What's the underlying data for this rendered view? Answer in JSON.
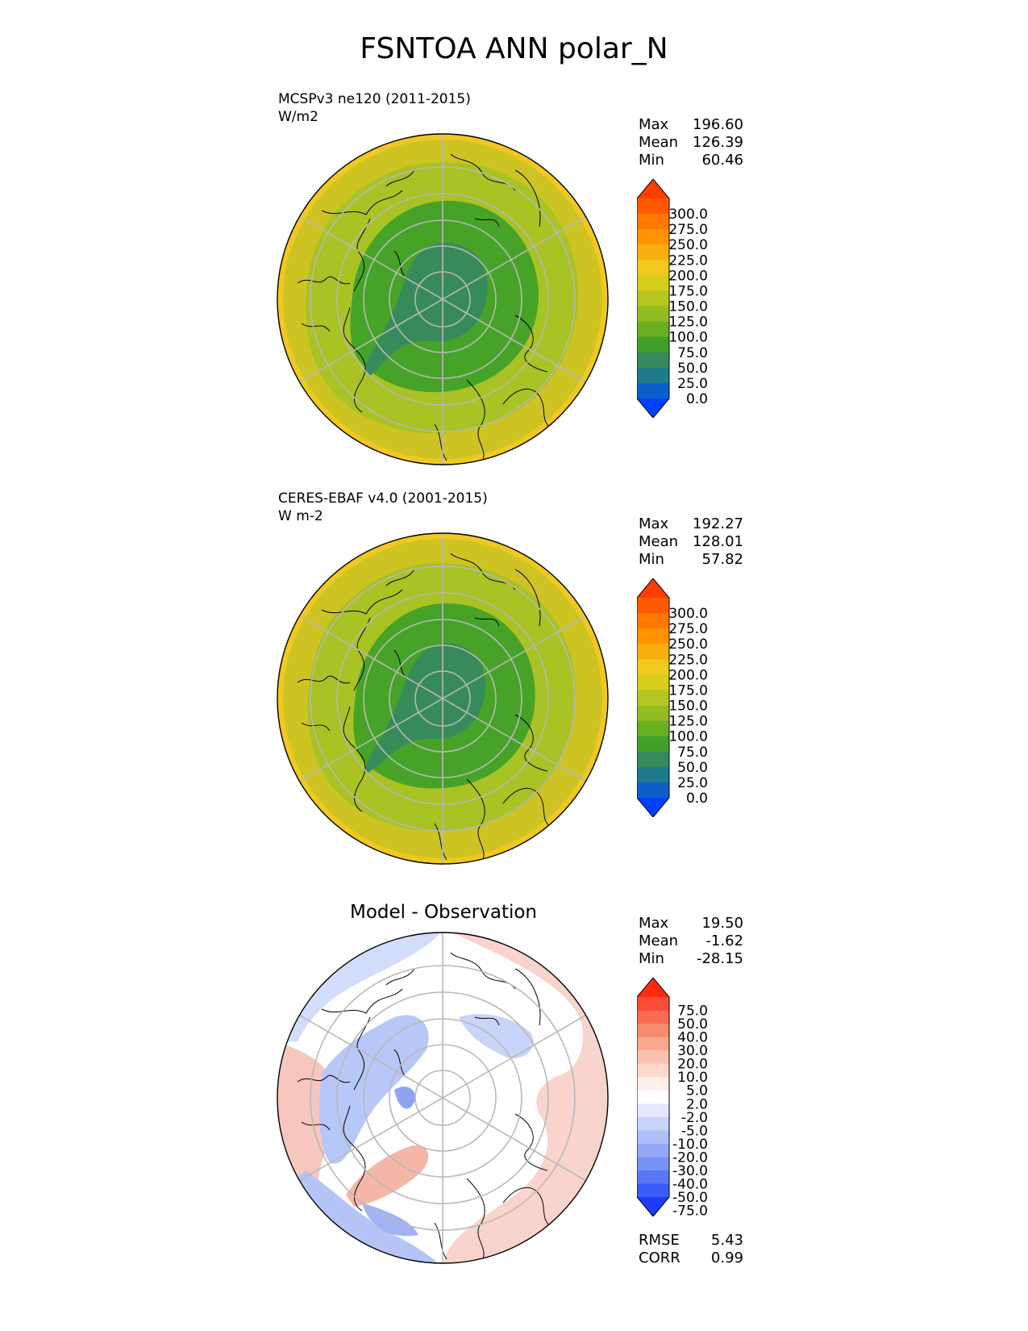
{
  "title": "FSNTOA ANN polar_N",
  "panels": [
    {
      "id": "model",
      "name_line": "MCSPv3 ne120 (2011-2015)",
      "units_line": "W/m2",
      "stats": {
        "max_label": "Max",
        "max": "196.60",
        "mean_label": "Mean",
        "mean": "126.39",
        "min_label": "Min",
        "min": "60.46"
      },
      "colorbar": {
        "labels": [
          "300.0",
          "275.0",
          "250.0",
          "225.0",
          "200.0",
          "175.0",
          "150.0",
          "125.0",
          "100.0",
          "75.0",
          "50.0",
          "25.0",
          "0.0"
        ],
        "colors_top_to_bottom": [
          "#ff3d00",
          "#ff5a00",
          "#ff7800",
          "#ff9400",
          "#f9ae10",
          "#f0c820",
          "#d6cd1c",
          "#b6c621",
          "#92bc22",
          "#6aae22",
          "#40a02a",
          "#378a5c",
          "#1f7a8a",
          "#0c5fc8",
          "#0040ff"
        ]
      }
    },
    {
      "id": "observation",
      "name_line": "CERES-EBAF v4.0 (2001-2015)",
      "units_line": "W m-2",
      "stats": {
        "max_label": "Max",
        "max": "192.27",
        "mean_label": "Mean",
        "mean": "128.01",
        "min_label": "Min",
        "min": "57.82"
      },
      "colorbar": {
        "labels": [
          "300.0",
          "275.0",
          "250.0",
          "225.0",
          "200.0",
          "175.0",
          "150.0",
          "125.0",
          "100.0",
          "75.0",
          "50.0",
          "25.0",
          "0.0"
        ],
        "colors_top_to_bottom": [
          "#ff3d00",
          "#ff5a00",
          "#ff7800",
          "#ff9400",
          "#f9ae10",
          "#f0c820",
          "#d6cd1c",
          "#b6c621",
          "#92bc22",
          "#6aae22",
          "#40a02a",
          "#378a5c",
          "#1f7a8a",
          "#0c5fc8",
          "#0040ff"
        ]
      }
    },
    {
      "id": "difference",
      "title": "Model - Observation",
      "stats": {
        "max_label": "Max",
        "max": "19.50",
        "mean_label": "Mean",
        "mean": "-1.62",
        "min_label": "Min",
        "min": "-28.15"
      },
      "metrics": {
        "rmse_label": "RMSE",
        "rmse": "5.43",
        "corr_label": "CORR",
        "corr": "0.99"
      },
      "colorbar": {
        "labels": [
          "75.0",
          "50.0",
          "40.0",
          "30.0",
          "20.0",
          "10.0",
          "5.0",
          "2.0",
          "-2.0",
          "-5.0",
          "-10.0",
          "-20.0",
          "-30.0",
          "-40.0",
          "-50.0",
          "-75.0"
        ],
        "colors_top_to_bottom": [
          "#ff2a10",
          "#fb4a35",
          "#f96a55",
          "#f88a70",
          "#f9a88f",
          "#fac2ae",
          "#fcd8cc",
          "#feeeea",
          "#ffffff",
          "#e4e9fd",
          "#c9d4fb",
          "#aebffa",
          "#93a9f8",
          "#7892f6",
          "#5a78f5",
          "#3a5cf5",
          "#1a3cf8"
        ]
      }
    }
  ],
  "colors": {
    "model_outer": "#cdc424",
    "model_mid": "#99bf24",
    "model_inner": "#43a227",
    "model_pole": "#378b5b",
    "model_edge": "#f0c820",
    "diff_neg": "#b7c7f7",
    "diff_pos": "#f6c2b8",
    "gridline": "#b8b8b8",
    "coastline": "#000000"
  }
}
